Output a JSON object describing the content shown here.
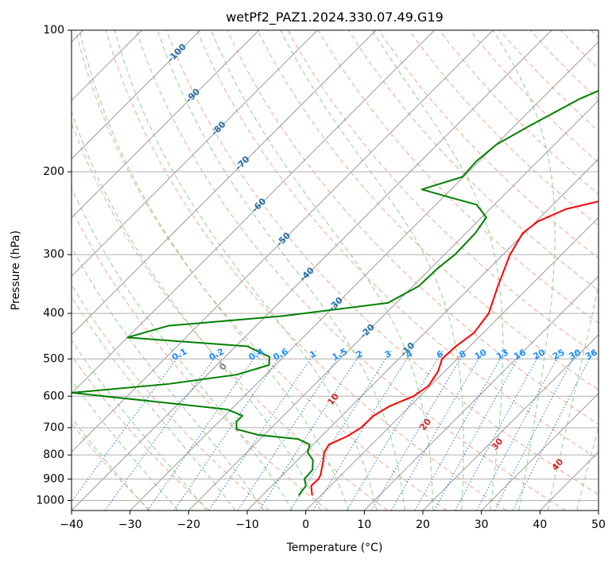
{
  "chart_data": {
    "type": "skew-t",
    "title": "wetPf2_PAZ1.2024.330.07.49.G19",
    "xlabel": "Temperature (°C)",
    "ylabel": "Pressure (hPa)",
    "xlim": [
      -40,
      50
    ],
    "ylim": [
      1050,
      100
    ],
    "y_scale": "log",
    "grid": true,
    "x_ticks": [
      -40,
      -30,
      -20,
      -10,
      0,
      10,
      20,
      30,
      40,
      50
    ],
    "x_tick_labels": [
      "−40",
      "−30",
      "−20",
      "−10",
      "0",
      "10",
      "20",
      "30",
      "40",
      "50"
    ],
    "y_ticks": [
      1000,
      900,
      800,
      700,
      600,
      500,
      400,
      300,
      200,
      100
    ],
    "y_tick_labels": [
      "1000",
      "900",
      "800",
      "700",
      "600",
      "500",
      "400",
      "300",
      "200",
      "100"
    ],
    "colors": {
      "temperature": "#ff0000",
      "dewpoint": "#008000",
      "isotherm": "#9a9a9a",
      "dry_adiabat": "#f5a58a",
      "moist_adiabat": "#8fcf8f",
      "mixing_ratio": "#1f77d4",
      "isotherm_label": "#1f6fa8",
      "mixing_ratio_label": "#1e90ff",
      "moist_label_zero": "#808080",
      "moist_label": "#d62728"
    },
    "isotherm_labels": [
      "-100",
      "-90",
      "-80",
      "-70",
      "-60",
      "-50",
      "-40",
      "-30",
      "-20",
      "-10"
    ],
    "isotherm_label_values": [
      -100,
      -90,
      -80,
      -70,
      -60,
      -50,
      -40,
      -30,
      -20,
      -10
    ],
    "mixing_ratio_labels": [
      "0.1",
      "0.2",
      "0.4",
      "0.6",
      "1",
      "1.5",
      "2",
      "3",
      "4",
      "6",
      "8",
      "10",
      "13",
      "16",
      "20",
      "25",
      "30",
      "36"
    ],
    "mixing_ratio_values": [
      0.1,
      0.2,
      0.4,
      0.6,
      1,
      1.5,
      2,
      3,
      4,
      6,
      8,
      10,
      13,
      16,
      20,
      25,
      30,
      36
    ],
    "moist_adiabat_labels": [
      "0",
      "10",
      "20",
      "30",
      "40"
    ],
    "moist_adiabat_values": [
      0,
      10,
      20,
      30,
      40
    ],
    "series": [
      {
        "name": "Temperature",
        "points": [
          {
            "p": 975,
            "t": -1.5
          },
          {
            "p": 930,
            "t": -3.3
          },
          {
            "p": 900,
            "t": -3.2
          },
          {
            "p": 880,
            "t": -3.6
          },
          {
            "p": 850,
            "t": -4.6
          },
          {
            "p": 820,
            "t": -5.6
          },
          {
            "p": 790,
            "t": -6.8
          },
          {
            "p": 760,
            "t": -7.3
          },
          {
            "p": 730,
            "t": -5.6
          },
          {
            "p": 700,
            "t": -4.7
          },
          {
            "p": 660,
            "t": -4.6
          },
          {
            "p": 630,
            "t": -3.5
          },
          {
            "p": 600,
            "t": -1.1
          },
          {
            "p": 570,
            "t": -0.3
          },
          {
            "p": 530,
            "t": -1.2
          },
          {
            "p": 500,
            "t": -2.6
          },
          {
            "p": 470,
            "t": -2.4
          },
          {
            "p": 440,
            "t": -1.6
          },
          {
            "p": 400,
            "t": -2.4
          },
          {
            "p": 350,
            "t": -5.5
          },
          {
            "p": 300,
            "t": -8.8
          },
          {
            "p": 270,
            "t": -10.3
          },
          {
            "p": 255,
            "t": -9.7
          },
          {
            "p": 240,
            "t": -7.0
          },
          {
            "p": 230,
            "t": -2.2
          },
          {
            "p": 215,
            "t": 3.3
          },
          {
            "p": 200,
            "t": 6.4
          },
          {
            "p": 185,
            "t": 10.0
          },
          {
            "p": 170,
            "t": 14.8
          },
          {
            "p": 150,
            "t": 21.2
          },
          {
            "p": 130,
            "t": 28.8
          },
          {
            "p": 115,
            "t": 35.6
          },
          {
            "p": 100,
            "t": 42.8
          }
        ]
      },
      {
        "name": "Dewpoint",
        "points": [
          {
            "p": 975,
            "t": -3.8
          },
          {
            "p": 930,
            "t": -4.2
          },
          {
            "p": 900,
            "t": -5.6
          },
          {
            "p": 860,
            "t": -5.8
          },
          {
            "p": 820,
            "t": -7.4
          },
          {
            "p": 790,
            "t": -9.6
          },
          {
            "p": 760,
            "t": -10.6
          },
          {
            "p": 740,
            "t": -13.5
          },
          {
            "p": 725,
            "t": -21.1
          },
          {
            "p": 705,
            "t": -25.7
          },
          {
            "p": 680,
            "t": -27.0
          },
          {
            "p": 660,
            "t": -27.0
          },
          {
            "p": 640,
            "t": -30.7
          },
          {
            "p": 620,
            "t": -42.1
          },
          {
            "p": 590,
            "t": -60.0
          },
          {
            "p": 565,
            "t": -45.0
          },
          {
            "p": 540,
            "t": -35.0
          },
          {
            "p": 515,
            "t": -31.1
          },
          {
            "p": 495,
            "t": -32.4
          },
          {
            "p": 470,
            "t": -38.0
          },
          {
            "p": 450,
            "t": -60.0
          },
          {
            "p": 425,
            "t": -55.0
          },
          {
            "p": 405,
            "t": -37.0
          },
          {
            "p": 380,
            "t": -21.4
          },
          {
            "p": 350,
            "t": -19.0
          },
          {
            "p": 320,
            "t": -18.8
          },
          {
            "p": 300,
            "t": -18.2
          },
          {
            "p": 270,
            "t": -18.4
          },
          {
            "p": 250,
            "t": -19.2
          },
          {
            "p": 235,
            "t": -23.0
          },
          {
            "p": 225,
            "t": -30.0
          },
          {
            "p": 218,
            "t": -35.0
          },
          {
            "p": 205,
            "t": -30.2
          },
          {
            "p": 190,
            "t": -30.5
          },
          {
            "p": 175,
            "t": -29.9
          },
          {
            "p": 160,
            "t": -27.5
          },
          {
            "p": 140,
            "t": -23.5
          },
          {
            "p": 120,
            "t": -16.4
          },
          {
            "p": 110,
            "t": -13.6
          },
          {
            "p": 100,
            "t": -9.2
          }
        ]
      }
    ]
  }
}
